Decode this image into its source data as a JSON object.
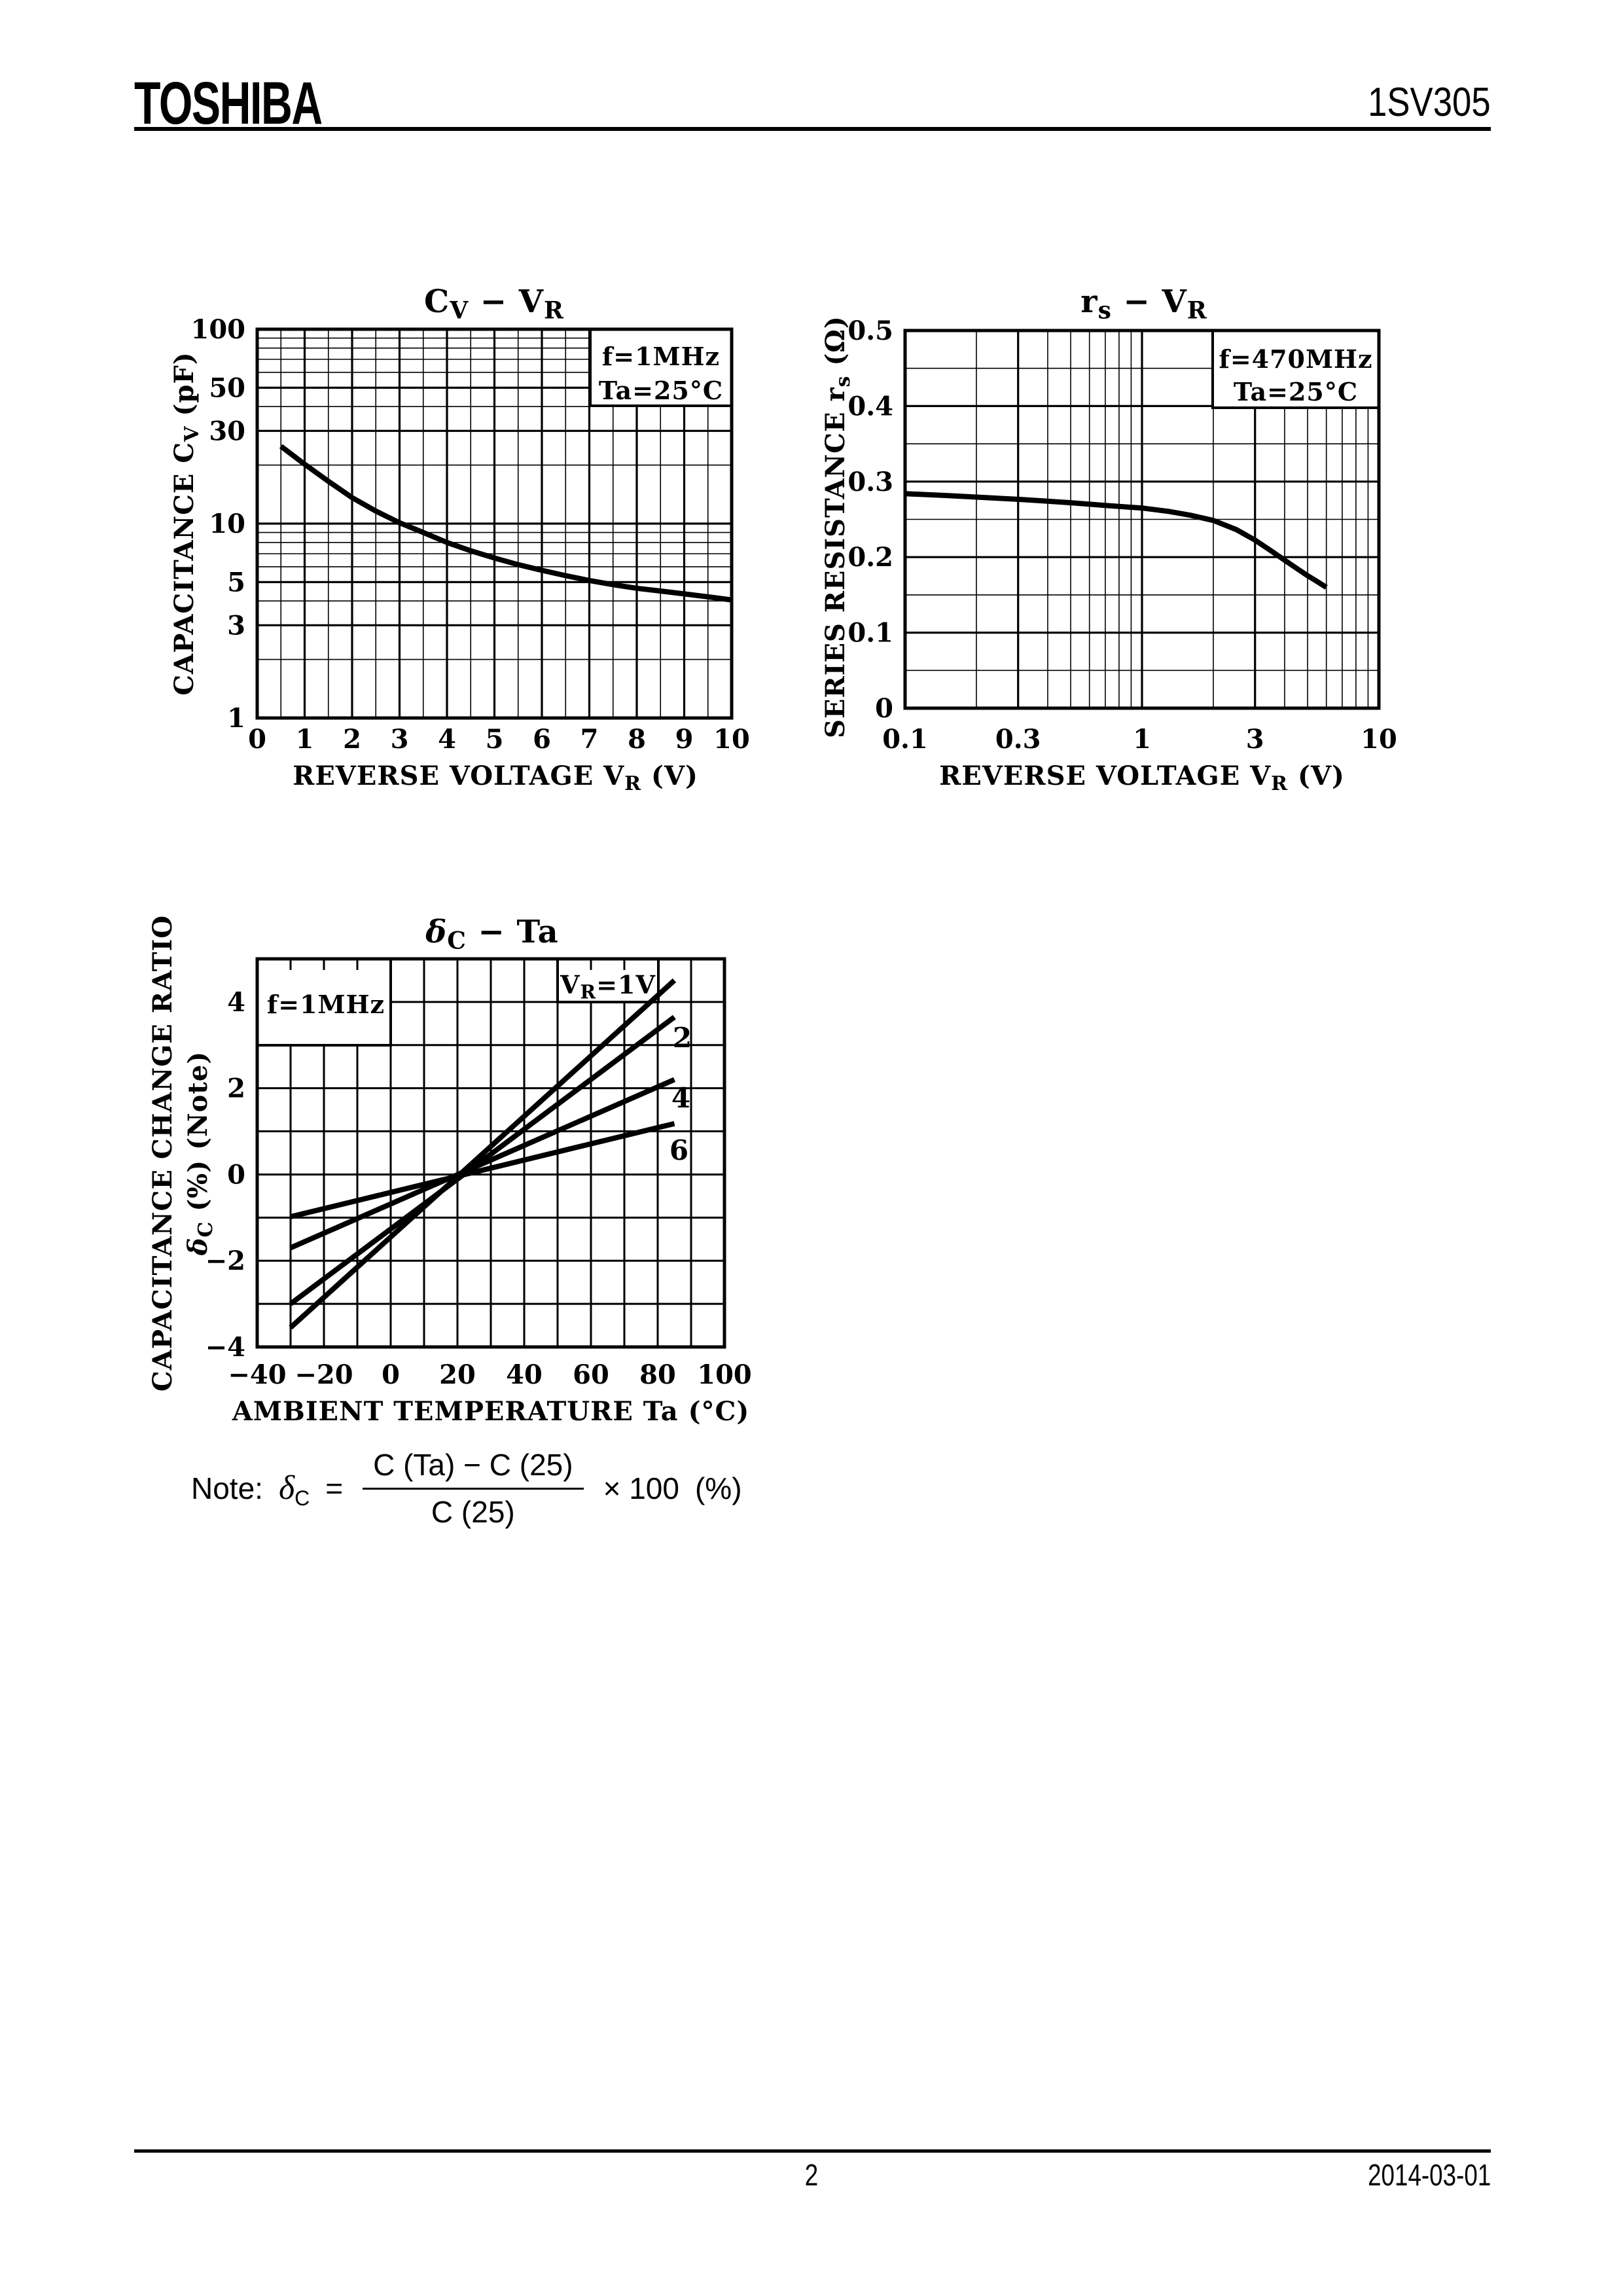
{
  "header": {
    "brand": "TOSHIBA",
    "part_number": "1SV305"
  },
  "footer": {
    "page_number": "2",
    "date": "2014-03-01"
  },
  "note": {
    "label": "Note:",
    "symbol": "δ",
    "symbol_sub": "C",
    "equals": "=",
    "numerator": "C (Ta) − C (25)",
    "denominator": "C (25)",
    "multiplier": "× 100",
    "unit": "(%)"
  },
  "chart_data": [
    {
      "id": "cv_vr",
      "type": "line",
      "title_text": "CV − VR",
      "title": [
        {
          "t": "C"
        },
        {
          "t": "V",
          "sub": true
        },
        {
          "t": "  −  "
        },
        {
          "t": "V"
        },
        {
          "t": "R",
          "sub": true
        }
      ],
      "xlabel": [
        {
          "t": "REVERSE VOLTAGE   "
        },
        {
          "t": "V"
        },
        {
          "t": "R",
          "sub": true
        },
        {
          "t": "   (V)"
        }
      ],
      "ylabels": [
        [
          {
            "t": "CAPACITANCE   "
          },
          {
            "t": "C"
          },
          {
            "t": "V",
            "sub": true
          },
          {
            "t": "   (pF)"
          }
        ]
      ],
      "x_axis": {
        "type": "linear",
        "min": 0,
        "max": 10,
        "grid_step": 0.5,
        "bold_step": 1,
        "ticks": [
          {
            "v": 0,
            "s": "0"
          },
          {
            "v": 1,
            "s": "1"
          },
          {
            "v": 2,
            "s": "2"
          },
          {
            "v": 3,
            "s": "3"
          },
          {
            "v": 4,
            "s": "4"
          },
          {
            "v": 5,
            "s": "5"
          },
          {
            "v": 6,
            "s": "6"
          },
          {
            "v": 7,
            "s": "7"
          },
          {
            "v": 8,
            "s": "8"
          },
          {
            "v": 9,
            "s": "9"
          },
          {
            "v": 10,
            "s": "10"
          }
        ]
      },
      "y_axis": {
        "type": "log",
        "min": 1,
        "max": 100,
        "bold_values": [
          1,
          3,
          5,
          10,
          30,
          50,
          100
        ],
        "ticks": [
          {
            "v": 100,
            "s": "100"
          },
          {
            "v": 50,
            "s": "50"
          },
          {
            "v": 30,
            "s": "30"
          },
          {
            "v": 10,
            "s": "10"
          },
          {
            "v": 5,
            "s": "5"
          },
          {
            "v": 3,
            "s": "3"
          },
          {
            "v": 1,
            "s": "1"
          }
        ]
      },
      "annotations": [
        {
          "lines": [
            [
              {
                "t": "f=1MHz"
              }
            ],
            [
              {
                "t": "Ta=25°C"
              }
            ]
          ]
        }
      ],
      "series": [
        {
          "name": "Cv",
          "points": [
            [
              0.5,
              25
            ],
            [
              1,
              20.2
            ],
            [
              1.5,
              16.5
            ],
            [
              2,
              13.6
            ],
            [
              2.5,
              11.6
            ],
            [
              3,
              10.1
            ],
            [
              3.5,
              9.0
            ],
            [
              4,
              8.0
            ],
            [
              4.5,
              7.25
            ],
            [
              5,
              6.65
            ],
            [
              5.5,
              6.15
            ],
            [
              6,
              5.75
            ],
            [
              6.5,
              5.4
            ],
            [
              7,
              5.1
            ],
            [
              7.5,
              4.85
            ],
            [
              8,
              4.65
            ],
            [
              8.5,
              4.5
            ],
            [
              9,
              4.35
            ],
            [
              9.5,
              4.2
            ],
            [
              10,
              4.05
            ]
          ]
        }
      ]
    },
    {
      "id": "rs_vr",
      "type": "line",
      "title_text": "rs − VR",
      "title": [
        {
          "t": "r"
        },
        {
          "t": "s",
          "sub": true
        },
        {
          "t": "  −  "
        },
        {
          "t": "V"
        },
        {
          "t": "R",
          "sub": true
        }
      ],
      "xlabel": [
        {
          "t": "REVERSE VOLTAGE   "
        },
        {
          "t": "V"
        },
        {
          "t": "R",
          "sub": true
        },
        {
          "t": "   (V)"
        }
      ],
      "ylabels": [
        [
          {
            "t": "SERIES RESISTANCE   "
          },
          {
            "t": "r"
          },
          {
            "t": "s",
            "sub": true
          },
          {
            "t": "   (Ω)"
          }
        ]
      ],
      "x_axis": {
        "type": "log",
        "min": 0.1,
        "max": 10,
        "bold_values": [
          0.1,
          0.3,
          1,
          3,
          10
        ],
        "ticks": [
          {
            "v": 0.1,
            "s": "0.1"
          },
          {
            "v": 0.3,
            "s": "0.3"
          },
          {
            "v": 1,
            "s": "1"
          },
          {
            "v": 3,
            "s": "3"
          },
          {
            "v": 10,
            "s": "10"
          }
        ]
      },
      "y_axis": {
        "type": "linear",
        "min": 0,
        "max": 0.5,
        "grid_step": 0.05,
        "bold_step": 0.1,
        "ticks": [
          {
            "v": 0.5,
            "s": "0.5"
          },
          {
            "v": 0.4,
            "s": "0.4"
          },
          {
            "v": 0.3,
            "s": "0.3"
          },
          {
            "v": 0.2,
            "s": "0.2"
          },
          {
            "v": 0.1,
            "s": "0.1"
          },
          {
            "v": 0,
            "s": "0"
          }
        ]
      },
      "annotations": [
        {
          "lines": [
            [
              {
                "t": "f=470MHz"
              }
            ],
            [
              {
                "t": "Ta=25°C"
              }
            ]
          ]
        }
      ],
      "series": [
        {
          "name": "rs",
          "points": [
            [
              0.1,
              0.284
            ],
            [
              0.15,
              0.2815
            ],
            [
              0.2,
              0.2795
            ],
            [
              0.3,
              0.2765
            ],
            [
              0.4,
              0.274
            ],
            [
              0.5,
              0.272
            ],
            [
              0.7,
              0.2685
            ],
            [
              1,
              0.265
            ],
            [
              1.3,
              0.2605
            ],
            [
              1.6,
              0.2555
            ],
            [
              2,
              0.2485
            ],
            [
              2.5,
              0.2365
            ],
            [
              3,
              0.2225
            ],
            [
              3.5,
              0.2085
            ],
            [
              4,
              0.196
            ],
            [
              4.5,
              0.185
            ],
            [
              5,
              0.1755
            ],
            [
              5.5,
              0.1675
            ],
            [
              6,
              0.16
            ]
          ]
        }
      ]
    },
    {
      "id": "dc_ta",
      "type": "line",
      "title_text": "δC − Ta",
      "title": [
        {
          "t": "δ",
          "italic": true
        },
        {
          "t": "C",
          "sub": true
        },
        {
          "t": "  −  Ta"
        }
      ],
      "xlabel": [
        {
          "t": "AMBIENT TEMPERATURE   Ta   (°C)"
        }
      ],
      "ylabels": [
        [
          {
            "t": "CAPACITANCE   CHANGE   RATIO"
          }
        ],
        [
          {
            "t": "δ",
            "italic": true
          },
          {
            "t": "C",
            "sub": true
          },
          {
            "t": "   (%)  (Note)"
          }
        ]
      ],
      "x_axis": {
        "type": "linear",
        "min": -40,
        "max": 100,
        "grid_step": 10,
        "uniform_width": 3,
        "ticks": [
          {
            "v": -40,
            "s": "−40"
          },
          {
            "v": -20,
            "s": "−20"
          },
          {
            "v": 0,
            "s": "0"
          },
          {
            "v": 20,
            "s": "20"
          },
          {
            "v": 40,
            "s": "40"
          },
          {
            "v": 60,
            "s": "60"
          },
          {
            "v": 80,
            "s": "80"
          },
          {
            "v": 100,
            "s": "100"
          }
        ]
      },
      "y_axis": {
        "type": "linear",
        "min": -4,
        "max": 5,
        "grid_step": 1,
        "uniform_width": 3,
        "ticks": [
          {
            "v": 4,
            "s": "4"
          },
          {
            "v": 2,
            "s": "2"
          },
          {
            "v": 0,
            "s": "0"
          },
          {
            "v": -2,
            "s": "−2"
          },
          {
            "v": -4,
            "s": "−4"
          }
        ]
      },
      "annotations": [
        {
          "lines": [
            [
              {
                "t": "f=1MHz"
              }
            ]
          ]
        },
        {
          "lines": [
            [
              {
                "t": "V"
              },
              {
                "t": "R",
                "sub": true
              },
              {
                "t": "=1V"
              }
            ]
          ]
        }
      ],
      "series": [
        {
          "name": "VR=1V",
          "points": [
            [
              -30,
              -3.55
            ],
            [
              85,
              4.5
            ]
          ],
          "label": null
        },
        {
          "name": "VR=2V",
          "points": [
            [
              -30,
              -3.0
            ],
            [
              85,
              3.65
            ]
          ],
          "label": [
            {
              "t": "2"
            }
          ]
        },
        {
          "name": "VR=4V",
          "points": [
            [
              -30,
              -1.7
            ],
            [
              85,
              2.2
            ]
          ],
          "label": [
            {
              "t": "4"
            }
          ]
        },
        {
          "name": "VR=6V",
          "points": [
            [
              -30,
              -0.98
            ],
            [
              85,
              1.18
            ]
          ],
          "label": [
            {
              "t": "6"
            }
          ]
        }
      ]
    }
  ]
}
